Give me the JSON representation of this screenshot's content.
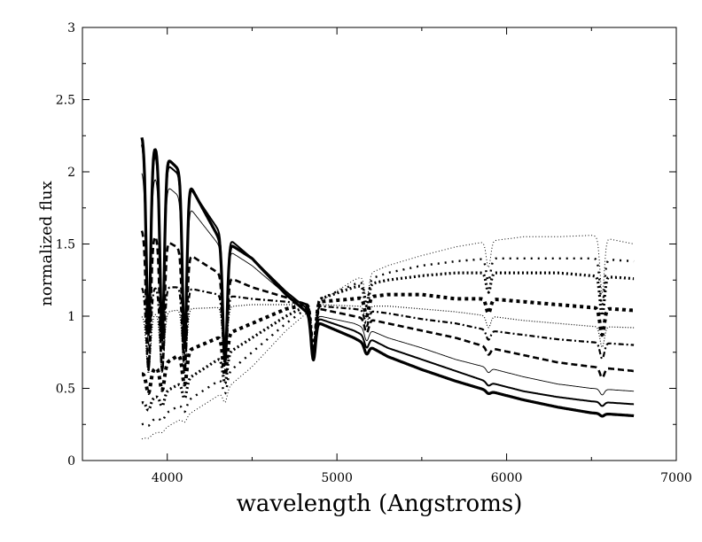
{
  "chart_data": {
    "type": "line",
    "title": "",
    "xlabel": "wavelength (Angstroms)",
    "ylabel": "normalized flux",
    "xlim": [
      3500,
      7000
    ],
    "ylim": [
      0,
      3
    ],
    "xticks": [
      4000,
      5000,
      6000,
      7000
    ],
    "xtick_labels": [
      "4000",
      "5000",
      "6000",
      "7000"
    ],
    "yticks": [
      0,
      0.5,
      1,
      1.5,
      2,
      2.5,
      3
    ],
    "ytick_labels": [
      "0",
      "0.5",
      "1",
      "1.5",
      "2",
      "2.5",
      "3"
    ],
    "grid": false,
    "legend": "none",
    "line_color": "#000000",
    "x": [
      3850,
      3950,
      4100,
      4300,
      4500,
      4700,
      4900,
      5100,
      5300,
      5500,
      5700,
      5900,
      6100,
      6300,
      6500,
      6750
    ],
    "series": [
      {
        "style": "thick-solid",
        "values": [
          2.25,
          2.15,
          1.98,
          1.55,
          1.4,
          1.15,
          0.95,
          0.85,
          0.72,
          0.63,
          0.55,
          0.48,
          0.42,
          0.37,
          0.33,
          0.31
        ]
      },
      {
        "style": "medium-solid",
        "values": [
          2.2,
          2.1,
          1.95,
          1.6,
          1.4,
          1.17,
          0.98,
          0.9,
          0.78,
          0.7,
          0.62,
          0.54,
          0.48,
          0.44,
          0.41,
          0.39
        ]
      },
      {
        "style": "thin-solid",
        "values": [
          2.0,
          1.95,
          1.8,
          1.5,
          1.35,
          1.15,
          1.0,
          0.95,
          0.85,
          0.78,
          0.7,
          0.64,
          0.58,
          0.53,
          0.5,
          0.48
        ]
      },
      {
        "style": "dashed",
        "values": [
          1.6,
          1.55,
          1.45,
          1.3,
          1.2,
          1.13,
          1.05,
          1.0,
          0.95,
          0.9,
          0.85,
          0.78,
          0.73,
          0.68,
          0.65,
          0.62
        ]
      },
      {
        "style": "dash-dot",
        "values": [
          1.2,
          1.2,
          1.2,
          1.15,
          1.12,
          1.1,
          1.07,
          1.05,
          1.02,
          0.98,
          0.95,
          0.9,
          0.87,
          0.84,
          0.82,
          0.8
        ]
      },
      {
        "style": "dotted-thin",
        "values": [
          1.0,
          1.02,
          1.05,
          1.06,
          1.08,
          1.08,
          1.08,
          1.07,
          1.07,
          1.05,
          1.03,
          1.0,
          0.97,
          0.95,
          0.93,
          0.92
        ]
      },
      {
        "style": "square-dash",
        "values": [
          0.6,
          0.65,
          0.75,
          0.85,
          0.95,
          1.05,
          1.1,
          1.12,
          1.15,
          1.15,
          1.12,
          1.12,
          1.1,
          1.08,
          1.06,
          1.04
        ]
      },
      {
        "style": "dense-dot",
        "values": [
          0.4,
          0.45,
          0.55,
          0.7,
          0.85,
          1.0,
          1.12,
          1.2,
          1.25,
          1.28,
          1.3,
          1.3,
          1.3,
          1.3,
          1.28,
          1.26
        ]
      },
      {
        "style": "sparse-dot",
        "values": [
          0.25,
          0.3,
          0.4,
          0.55,
          0.75,
          0.95,
          1.12,
          1.22,
          1.3,
          1.35,
          1.38,
          1.4,
          1.4,
          1.4,
          1.4,
          1.38
        ]
      },
      {
        "style": "fine-dot",
        "values": [
          0.15,
          0.2,
          0.3,
          0.45,
          0.65,
          0.9,
          1.1,
          1.25,
          1.35,
          1.42,
          1.48,
          1.52,
          1.55,
          1.55,
          1.56,
          1.5
        ]
      }
    ],
    "absorption_lines": [
      {
        "x": 3889,
        "depth": 0.6
      },
      {
        "x": 3970,
        "depth": 0.6
      },
      {
        "x": 4102,
        "depth": 0.6
      },
      {
        "x": 4340,
        "depth": 0.55
      },
      {
        "x": 4861,
        "depth": 0.45
      },
      {
        "x": 5175,
        "depth": 0.15
      },
      {
        "x": 5893,
        "depth": 0.12
      },
      {
        "x": 6563,
        "depth": 0.25
      }
    ]
  }
}
